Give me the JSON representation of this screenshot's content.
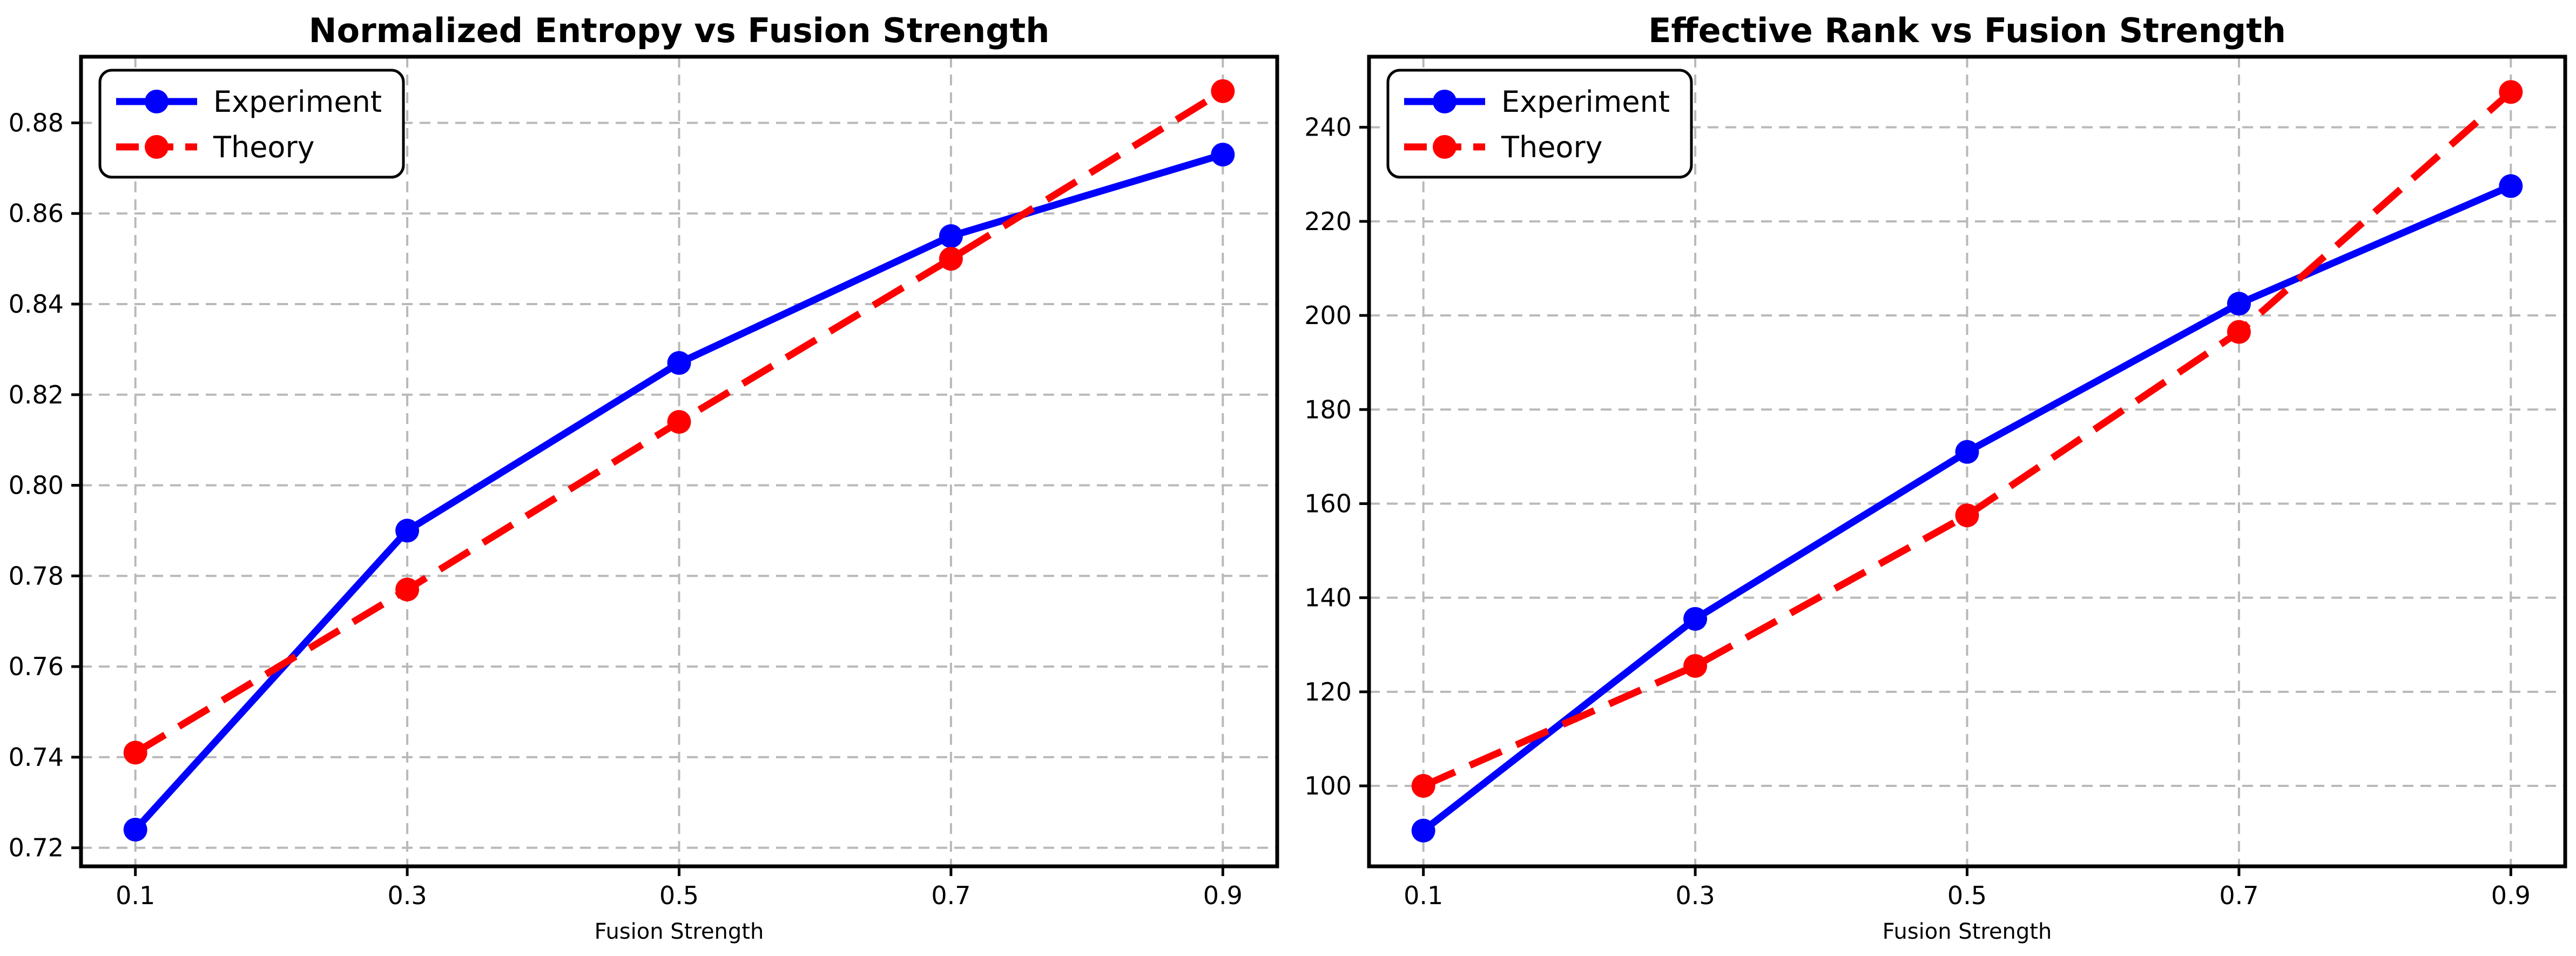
{
  "style": {
    "background": "#ffffff",
    "grid_color": "#b9b9b9",
    "spine_color": "#000000",
    "text_color": "#000000",
    "experiment_color": "#0000ff",
    "theory_color": "#ff0000"
  },
  "chart_data": [
    {
      "type": "line",
      "title": "Normalized Entropy vs Fusion Strength",
      "xlabel": "Fusion Strength",
      "ylabel": "",
      "x": [
        0.1,
        0.3,
        0.5,
        0.7,
        0.9
      ],
      "xtick_labels": [
        "0.1",
        "0.3",
        "0.5",
        "0.7",
        "0.9"
      ],
      "xlim": [
        0.06,
        0.94
      ],
      "ylim": [
        0.7159,
        0.8946
      ],
      "yticks": [
        0.72,
        0.74,
        0.76,
        0.78,
        0.8,
        0.82,
        0.84,
        0.86,
        0.88
      ],
      "ytick_labels": [
        "0.72",
        "0.74",
        "0.76",
        "0.78",
        "0.80",
        "0.82",
        "0.84",
        "0.86",
        "0.88"
      ],
      "grid": true,
      "legend_position": "upper left",
      "legend_entries": [
        "Experiment",
        "Theory"
      ],
      "series": [
        {
          "name": "Experiment",
          "color": "#0000ff",
          "line_style": "solid",
          "marker": "circle",
          "values": [
            0.724,
            0.79,
            0.827,
            0.855,
            0.873
          ]
        },
        {
          "name": "Theory",
          "color": "#ff0000",
          "line_style": "dashed",
          "marker": "circle",
          "values": [
            0.741,
            0.777,
            0.814,
            0.85,
            0.887
          ]
        }
      ]
    },
    {
      "type": "line",
      "title": "Effective Rank vs Fusion Strength",
      "xlabel": "Fusion Strength",
      "ylabel": "",
      "x": [
        0.1,
        0.3,
        0.5,
        0.7,
        0.9
      ],
      "xtick_labels": [
        "0.1",
        "0.3",
        "0.5",
        "0.7",
        "0.9"
      ],
      "xlim": [
        0.06,
        0.94
      ],
      "ylim": [
        82.9,
        255.0
      ],
      "yticks": [
        100,
        120,
        140,
        160,
        180,
        200,
        220,
        240
      ],
      "ytick_labels": [
        "100",
        "120",
        "140",
        "160",
        "180",
        "200",
        "220",
        "240"
      ],
      "grid": true,
      "legend_position": "upper left",
      "legend_entries": [
        "Experiment",
        "Theory"
      ],
      "series": [
        {
          "name": "Experiment",
          "color": "#0000ff",
          "line_style": "solid",
          "marker": "circle",
          "values": [
            90.5,
            135.5,
            171.0,
            202.5,
            227.5
          ]
        },
        {
          "name": "Theory",
          "color": "#ff0000",
          "line_style": "dashed",
          "marker": "circle",
          "values": [
            100.0,
            125.5,
            157.5,
            196.5,
            247.5
          ]
        }
      ]
    }
  ]
}
